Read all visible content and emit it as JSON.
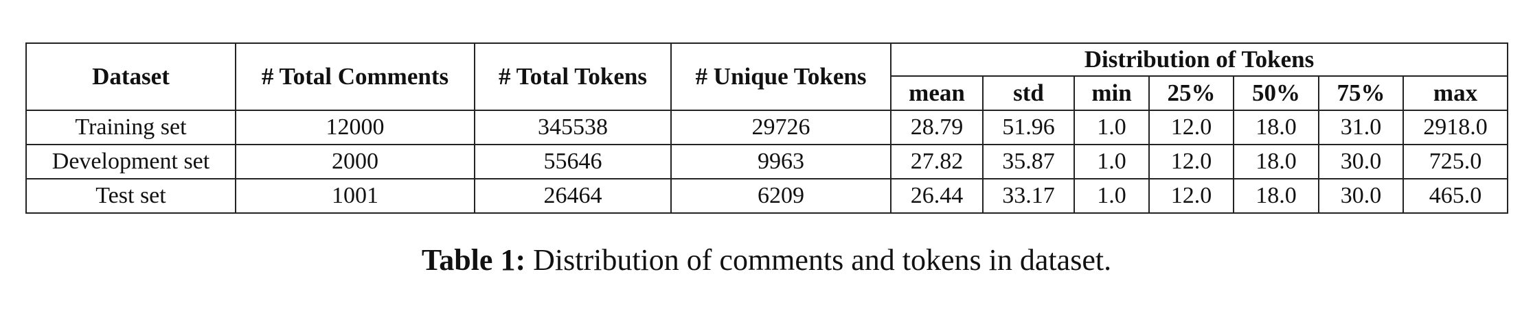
{
  "table": {
    "headers": {
      "dataset": "Dataset",
      "total_comments": "# Total Comments",
      "total_tokens": "# Total Tokens",
      "unique_tokens": "# Unique Tokens",
      "distribution": "Distribution of Tokens",
      "dist_cols": [
        "mean",
        "std",
        "min",
        "25%",
        "50%",
        "75%",
        "max"
      ]
    },
    "rows": [
      [
        "Training set",
        "12000",
        "345538",
        "29726",
        "28.79",
        "51.96",
        "1.0",
        "12.0",
        "18.0",
        "31.0",
        "2918.0"
      ],
      [
        "Development set",
        "2000",
        "55646",
        "9963",
        "27.82",
        "35.87",
        "1.0",
        "12.0",
        "18.0",
        "30.0",
        "725.0"
      ],
      [
        "Test set",
        "1001",
        "26464",
        "6209",
        "26.44",
        "33.17",
        "1.0",
        "12.0",
        "18.0",
        "30.0",
        "465.0"
      ]
    ]
  },
  "caption": {
    "label": "Table 1:",
    "text": "Distribution of comments and tokens in dataset."
  }
}
